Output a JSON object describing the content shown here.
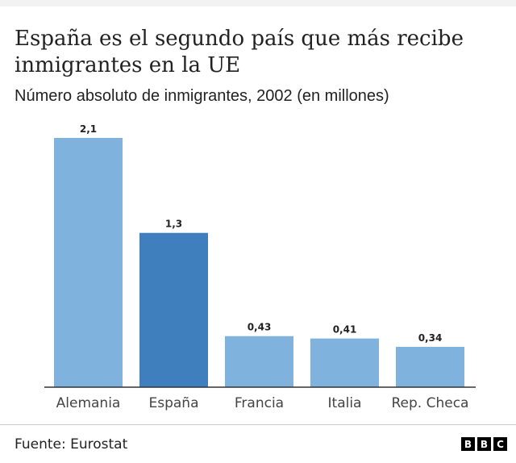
{
  "title": "España es el segundo país que más recibe inmigrantes en la UE",
  "subtitle": "Número absoluto de inmigrantes, 2002 (en millones)",
  "source": "Fuente: Eurostat",
  "logo": {
    "letters": [
      "B",
      "B",
      "C"
    ]
  },
  "colors": {
    "bar": "#7fb2dc",
    "highlight": "#3f7fbd",
    "axis": "#333333"
  },
  "chart_data": {
    "type": "bar",
    "title": "España es el segundo país que más recibe inmigrantes en la UE",
    "subtitle": "Número absoluto de inmigrantes, 2002 (en millones)",
    "xlabel": "",
    "ylabel": "",
    "categories": [
      "Alemania",
      "España",
      "Francia",
      "Italia",
      "Rep. Checa"
    ],
    "values": [
      2.1,
      1.3,
      0.43,
      0.41,
      0.34
    ],
    "value_labels": [
      "2,1",
      "1,3",
      "0,43",
      "0,41",
      "0,34"
    ],
    "highlight": "España",
    "ylim": [
      0,
      2.1
    ],
    "grid": false
  }
}
